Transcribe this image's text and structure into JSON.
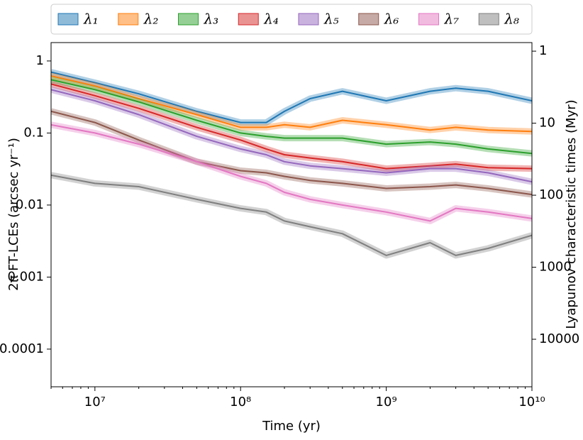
{
  "chart_data": {
    "type": "line",
    "x_label": "Time (yr)",
    "y_label": "2π FT-LCEs (arcsec yr⁻¹)",
    "y2_label": "Lyapunov characteristic times (Myr)",
    "x_log": true,
    "y_log": true,
    "y2_log": true,
    "legend": "upper center",
    "xlim": [
      5000000,
      10000000000
    ],
    "ylim": [
      3e-05,
      1.8
    ],
    "y2lim": [
      45700,
      0.76
    ],
    "xticks": [
      {
        "value": 10000000,
        "label": "10⁷"
      },
      {
        "value": 100000000,
        "label": "10⁸"
      },
      {
        "value": 1000000000,
        "label": "10⁹"
      },
      {
        "value": 10000000000,
        "label": "10¹⁰"
      }
    ],
    "yticks": [
      0.0001,
      0.001,
      0.01,
      0.1,
      1
    ],
    "y2ticks": [
      1,
      10,
      100,
      1000,
      10000
    ],
    "x": [
      5000000,
      10000000,
      20000000,
      50000000,
      100000000,
      150000000,
      200000000,
      300000000,
      500000000,
      1000000000,
      2000000000,
      3000000000,
      5000000000,
      10000000000
    ],
    "series": [
      {
        "name": "λ₁",
        "color": "#1f77b4",
        "values": [
          0.7,
          0.5,
          0.35,
          0.2,
          0.14,
          0.14,
          0.2,
          0.3,
          0.38,
          0.28,
          0.38,
          0.42,
          0.38,
          0.28
        ]
      },
      {
        "name": "λ₂",
        "color": "#ff7f0e",
        "values": [
          0.62,
          0.45,
          0.3,
          0.18,
          0.12,
          0.12,
          0.13,
          0.12,
          0.15,
          0.13,
          0.11,
          0.12,
          0.11,
          0.105
        ]
      },
      {
        "name": "λ₃",
        "color": "#2ca02c",
        "values": [
          0.55,
          0.4,
          0.27,
          0.15,
          0.1,
          0.09,
          0.085,
          0.085,
          0.085,
          0.07,
          0.075,
          0.07,
          0.06,
          0.052
        ]
      },
      {
        "name": "λ₄",
        "color": "#d62728",
        "values": [
          0.48,
          0.33,
          0.22,
          0.12,
          0.08,
          0.06,
          0.05,
          0.045,
          0.04,
          0.032,
          0.035,
          0.037,
          0.033,
          0.032
        ]
      },
      {
        "name": "λ₅",
        "color": "#9467bd",
        "values": [
          0.4,
          0.28,
          0.18,
          0.09,
          0.06,
          0.05,
          0.04,
          0.035,
          0.032,
          0.028,
          0.032,
          0.032,
          0.028,
          0.021
        ]
      },
      {
        "name": "λ₆",
        "color": "#8c564b",
        "values": [
          0.2,
          0.14,
          0.08,
          0.04,
          0.03,
          0.028,
          0.025,
          0.022,
          0.02,
          0.017,
          0.018,
          0.019,
          0.017,
          0.014
        ]
      },
      {
        "name": "λ₇",
        "color": "#e377c2",
        "values": [
          0.13,
          0.1,
          0.07,
          0.04,
          0.025,
          0.02,
          0.015,
          0.012,
          0.01,
          0.008,
          0.006,
          0.009,
          0.008,
          0.0065
        ]
      },
      {
        "name": "λ₈",
        "color": "#7f7f7f",
        "values": [
          0.026,
          0.02,
          0.018,
          0.012,
          0.009,
          0.008,
          0.006,
          0.005,
          0.004,
          0.002,
          0.003,
          0.002,
          0.0025,
          0.0038
        ]
      }
    ]
  }
}
